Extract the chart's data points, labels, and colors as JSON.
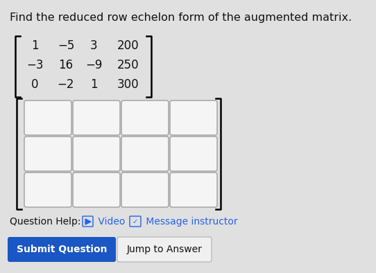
{
  "title": "Find the reduced row echelon form of the augmented matrix.",
  "title_fontsize": 11.5,
  "bg_color": "#e0e0e0",
  "matrix_values": [
    [
      "1",
      "−5",
      "3",
      "200"
    ],
    [
      "−3",
      "16",
      "−9",
      "250"
    ],
    [
      "0",
      "−2",
      "1",
      "300"
    ]
  ],
  "matrix_fontsize": 12,
  "input_rows": 3,
  "input_cols": 4,
  "question_help_text": "Question Help:",
  "video_text": " Video",
  "message_text": " Message instructor",
  "help_fontsize": 10,
  "submit_btn_text": "Submit Question",
  "submit_btn_color": "#1a56c4",
  "submit_btn_text_color": "#ffffff",
  "jump_btn_text": "Jump to Answer",
  "btn_fontsize": 10,
  "box_bg": "#f5f5f5",
  "box_border": "#aaaaaa",
  "text_color": "#111111",
  "link_color": "#2563eb"
}
